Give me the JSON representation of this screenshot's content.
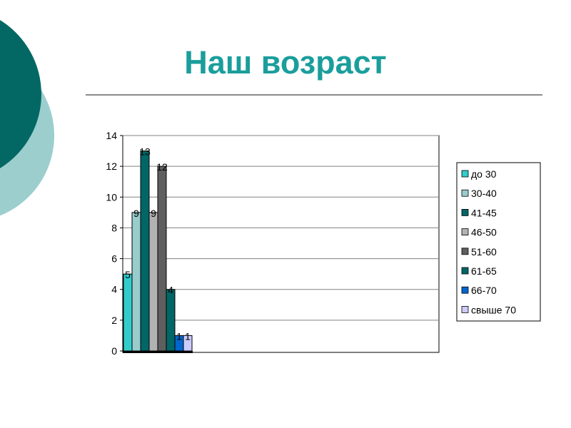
{
  "slide": {
    "title": "Наш возраст"
  },
  "colors": {
    "circle_dark": "#036864",
    "circle_light": "#9ccece",
    "title": "#1a9e9c"
  },
  "chart_data": {
    "type": "bar",
    "title": "",
    "xlabel": "",
    "ylabel": "",
    "ylim": [
      0,
      14
    ],
    "yticks": [
      0,
      2,
      4,
      6,
      8,
      10,
      12,
      14
    ],
    "grid": true,
    "legend_position": "right",
    "data_labels": true,
    "series": [
      {
        "name": "до 30",
        "value": 5,
        "color": "#33cccc"
      },
      {
        "name": "30-40",
        "value": 9,
        "color": "#99cccc"
      },
      {
        "name": "41-45",
        "value": 13,
        "color": "#006666"
      },
      {
        "name": "46-50",
        "value": 9,
        "color": "#b2b2b2"
      },
      {
        "name": "51-60",
        "value": 12,
        "color": "#5f5f5f"
      },
      {
        "name": "61-65",
        "value": 4,
        "color": "#006666"
      },
      {
        "name": "66-70",
        "value": 1,
        "color": "#0066cc"
      },
      {
        "name": "свыше 70",
        "value": 1,
        "color": "#ccccff"
      }
    ]
  }
}
